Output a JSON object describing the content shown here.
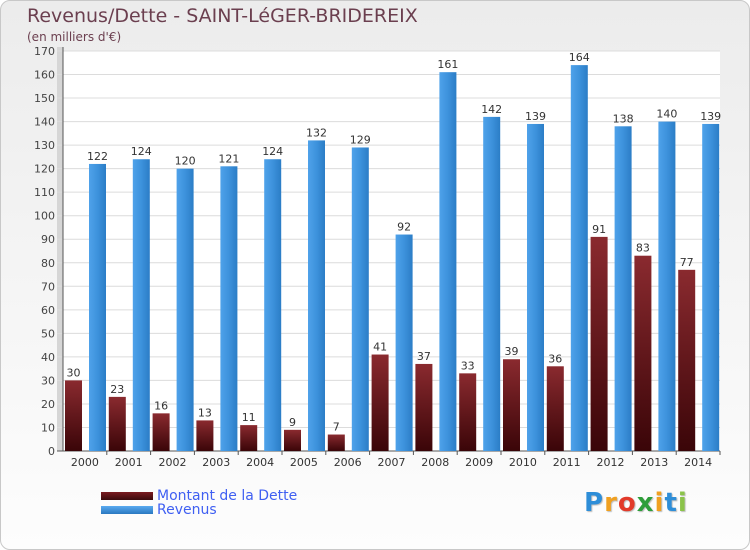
{
  "chart_data": {
    "type": "bar",
    "title": "Revenus/Dette - SAINT-LéGER-BRIDEREIX",
    "subtitle": "(en milliers d'€)",
    "categories": [
      "2000",
      "2001",
      "2002",
      "2003",
      "2004",
      "2005",
      "2006",
      "2007",
      "2008",
      "2009",
      "2010",
      "2011",
      "2012",
      "2013",
      "2014"
    ],
    "series": [
      {
        "name": "Montant de la Dette",
        "color": "#7a1a1f",
        "values": [
          30,
          23,
          16,
          13,
          11,
          9,
          7,
          41,
          37,
          33,
          39,
          36,
          91,
          83,
          77
        ]
      },
      {
        "name": "Revenus",
        "color": "#3a8fd8",
        "values": [
          122,
          124,
          120,
          121,
          124,
          132,
          129,
          92,
          161,
          142,
          139,
          164,
          138,
          140,
          139
        ]
      }
    ],
    "yticks": [
      0,
      10,
      20,
      30,
      40,
      50,
      60,
      70,
      80,
      90,
      100,
      110,
      120,
      130,
      140,
      150,
      160,
      170
    ],
    "ylim": [
      0,
      170
    ],
    "grid": true,
    "legend_position": "bottom-left"
  },
  "legend": [
    {
      "label": "Montant de la Dette",
      "color": "#7a1a1f"
    },
    {
      "label": "Revenus",
      "color": "#3a8fd8"
    }
  ],
  "logo": {
    "letters": [
      "P",
      "r",
      "o",
      "x",
      "i",
      "t",
      "i"
    ],
    "colors": [
      "#2e8ed8",
      "#f0a020",
      "#e23a2a",
      "#2e9e3a",
      "#f0a020",
      "#2e8ed8",
      "#8bc34a"
    ]
  }
}
